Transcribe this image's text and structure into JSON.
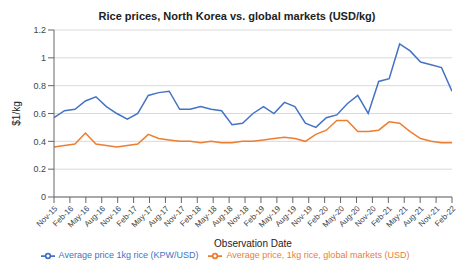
{
  "chart_data": {
    "type": "line",
    "title": "Rice prices, North Korea vs. global markets (USD/kg)",
    "x_label": "Observation Date",
    "y_label": "$1/kg",
    "x": [
      0,
      0.6578947368421053,
      1.3157894736842106,
      1.9736842105263157,
      2.631578947368421,
      3.289473684210526,
      3.9473684210526314,
      4.605263157894737,
      5.263157894736842,
      5.921052631578947,
      6.578947368421052,
      7.2368421052631575,
      7.894736842105263,
      8.552631578947368,
      9.210526315789474,
      9.868421052631579,
      10.526315789473685,
      11.18421052631579,
      11.842105263157894,
      12.5,
      13.157894736842104,
      13.81578947368421,
      14.473684210526315,
      15.131578947368421,
      15.789473684210526,
      16.447368421052634,
      17.105263157894736,
      17.763157894736842,
      18.42105263157895,
      19.07894736842105,
      19.736842105263158,
      20.394736842105264,
      21.05263157894737,
      21.710526315789473,
      22.36842105263158,
      23.026315789473685,
      23.684210526315788,
      24.342105263157894,
      25
    ],
    "series": [
      {
        "name": "Average price 1kg rice (KPW/USD)",
        "color": "#4472C4",
        "values": [
          0.57,
          0.62,
          0.63,
          0.69,
          0.72,
          0.65,
          0.6,
          0.56,
          0.6,
          0.73,
          0.75,
          0.76,
          0.63,
          0.63,
          0.65,
          0.63,
          0.62,
          0.52,
          0.53,
          0.6,
          0.65,
          0.6,
          0.68,
          0.65,
          0.53,
          0.5,
          0.57,
          0.59,
          0.67,
          0.73,
          0.6,
          0.83,
          0.85,
          1.1,
          1.05,
          0.97,
          0.95,
          0.93,
          0.76
        ]
      },
      {
        "name": "Average price, 1kg rice, global markets (USD)",
        "color": "#ED7D31",
        "values": [
          0.36,
          0.37,
          0.38,
          0.46,
          0.38,
          0.37,
          0.36,
          0.37,
          0.38,
          0.45,
          0.42,
          0.41,
          0.4,
          0.4,
          0.39,
          0.4,
          0.39,
          0.39,
          0.4,
          0.4,
          0.41,
          0.42,
          0.43,
          0.42,
          0.4,
          0.45,
          0.48,
          0.55,
          0.55,
          0.47,
          0.47,
          0.48,
          0.54,
          0.53,
          0.47,
          0.42,
          0.4,
          0.39,
          0.39
        ]
      }
    ],
    "xlim": [
      0,
      25
    ],
    "xticks": [
      {
        "value": 0,
        "label": "Nov-15"
      },
      {
        "value": 1,
        "label": "Feb-16"
      },
      {
        "value": 2,
        "label": "May-16"
      },
      {
        "value": 3,
        "label": "Aug-16"
      },
      {
        "value": 4,
        "label": "Nov-16"
      },
      {
        "value": 5,
        "label": "Feb-17"
      },
      {
        "value": 6,
        "label": "May-17"
      },
      {
        "value": 7,
        "label": "Aug-17"
      },
      {
        "value": 8,
        "label": "Nov-17"
      },
      {
        "value": 9,
        "label": "Feb-18"
      },
      {
        "value": 10,
        "label": "May-18"
      },
      {
        "value": 11,
        "label": "Aug-18"
      },
      {
        "value": 12,
        "label": "Nov-18"
      },
      {
        "value": 13,
        "label": "Feb-19"
      },
      {
        "value": 14,
        "label": "May-19"
      },
      {
        "value": 15,
        "label": "Aug-19"
      },
      {
        "value": 16,
        "label": "Nov-19"
      },
      {
        "value": 17,
        "label": "Feb-20"
      },
      {
        "value": 18,
        "label": "May-20"
      },
      {
        "value": 19,
        "label": "Aug-20"
      },
      {
        "value": 20,
        "label": "Nov-20"
      },
      {
        "value": 21,
        "label": "Feb-21"
      },
      {
        "value": 22,
        "label": "May-21"
      },
      {
        "value": 23,
        "label": "Aug-21"
      },
      {
        "value": 24,
        "label": "Nov-21"
      },
      {
        "value": 25,
        "label": "Feb-22"
      }
    ],
    "ylim": [
      0,
      1.2
    ],
    "yticks": [
      0,
      0.2,
      0.4,
      0.6,
      0.8,
      1,
      1.2
    ],
    "grid": true,
    "legend": "bottom"
  }
}
